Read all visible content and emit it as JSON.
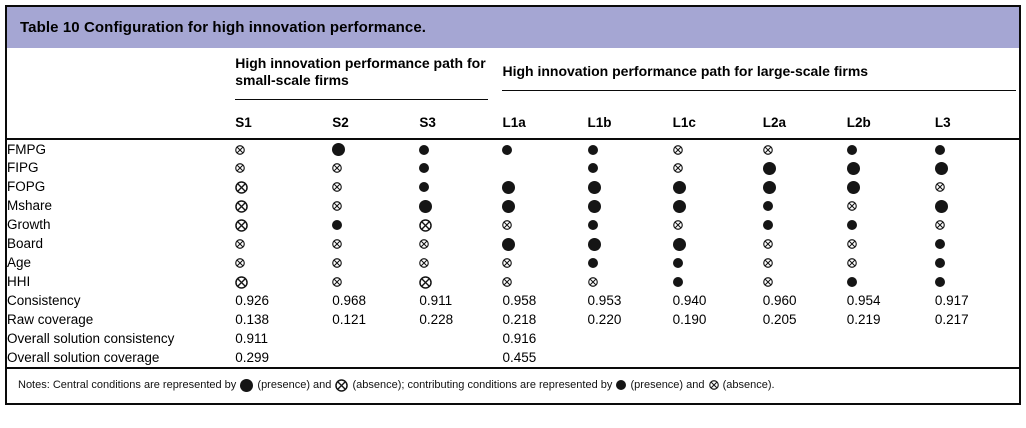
{
  "title": "Table 10 Configuration for high innovation performance.",
  "groups": [
    {
      "label": "High innovation performance path for small-scale firms",
      "columns": [
        "S1",
        "S2",
        "S3"
      ]
    },
    {
      "label": "High innovation performance path for large-scale firms",
      "columns": [
        "L1a",
        "L1b",
        "L1c",
        "L2a",
        "L2b",
        "L3"
      ]
    }
  ],
  "condition_rows": [
    {
      "label": "FMPG",
      "cells": [
        "SA",
        "LP",
        "SP",
        "SP",
        "SP",
        "SA",
        "SA",
        "SP",
        "SP"
      ]
    },
    {
      "label": "FIPG",
      "cells": [
        "SA",
        "SA",
        "SP",
        "",
        "SP",
        "SA",
        "LP",
        "LP",
        "LP"
      ]
    },
    {
      "label": "FOPG",
      "cells": [
        "LA",
        "SA",
        "SP",
        "LP",
        "LP",
        "LP",
        "LP",
        "LP",
        "SA"
      ]
    },
    {
      "label": "Mshare",
      "cells": [
        "LA",
        "SA",
        "LP",
        "LP",
        "LP",
        "LP",
        "SP",
        "SA",
        "LP"
      ]
    },
    {
      "label": "Growth",
      "cells": [
        "LA",
        "SP",
        "LA",
        "SA",
        "SP",
        "SA",
        "SP",
        "SP",
        "SA"
      ]
    },
    {
      "label": "Board",
      "cells": [
        "SA",
        "SA",
        "SA",
        "LP",
        "LP",
        "LP",
        "SA",
        "SA",
        "SP"
      ]
    },
    {
      "label": "Age",
      "cells": [
        "SA",
        "SA",
        "SA",
        "SA",
        "SP",
        "SP",
        "SA",
        "SA",
        "SP"
      ]
    },
    {
      "label": "HHI",
      "cells": [
        "LA",
        "SA",
        "LA",
        "SA",
        "SA",
        "SP",
        "SA",
        "SP",
        "SP"
      ]
    }
  ],
  "stat_rows": [
    {
      "label": "Consistency",
      "values": [
        "0.926",
        "0.968",
        "0.911",
        "0.958",
        "0.953",
        "0.940",
        "0.960",
        "0.954",
        "0.917"
      ]
    },
    {
      "label": "Raw coverage",
      "values": [
        "0.138",
        "0.121",
        "0.228",
        "0.218",
        "0.220",
        "0.190",
        "0.205",
        "0.219",
        "0.217"
      ]
    },
    {
      "label": "Overall solution consistency",
      "values": [
        "0.911",
        "",
        "",
        "0.916",
        "",
        "",
        "",
        "",
        ""
      ]
    },
    {
      "label": "Overall solution coverage",
      "values": [
        "0.299",
        "",
        "",
        "0.455",
        "",
        "",
        "",
        "",
        ""
      ]
    }
  ],
  "symbols": {
    "LP": {
      "name": "central-presence",
      "glyph": "filled-circle",
      "size": 13
    },
    "LA": {
      "name": "central-absence",
      "glyph": "crossed-circle",
      "size": 13
    },
    "SP": {
      "name": "contributing-presence",
      "glyph": "filled-circle",
      "size": 10
    },
    "SA": {
      "name": "contributing-absence",
      "glyph": "crossed-circle",
      "size": 10
    }
  },
  "notes": {
    "segments": [
      {
        "text": "Notes: Central conditions are represented by "
      },
      {
        "symbol": "LP"
      },
      {
        "text": " (presence) and "
      },
      {
        "symbol": "LA"
      },
      {
        "text": " (absence); contributing conditions are represented by "
      },
      {
        "symbol": "SP"
      },
      {
        "text": " (presence) and "
      },
      {
        "symbol": "SA"
      },
      {
        "text": " (absence)."
      }
    ]
  },
  "colors": {
    "header_bg": "#a5a6d3",
    "border": "#000000",
    "symbol": "#151515",
    "text": "#000000"
  }
}
